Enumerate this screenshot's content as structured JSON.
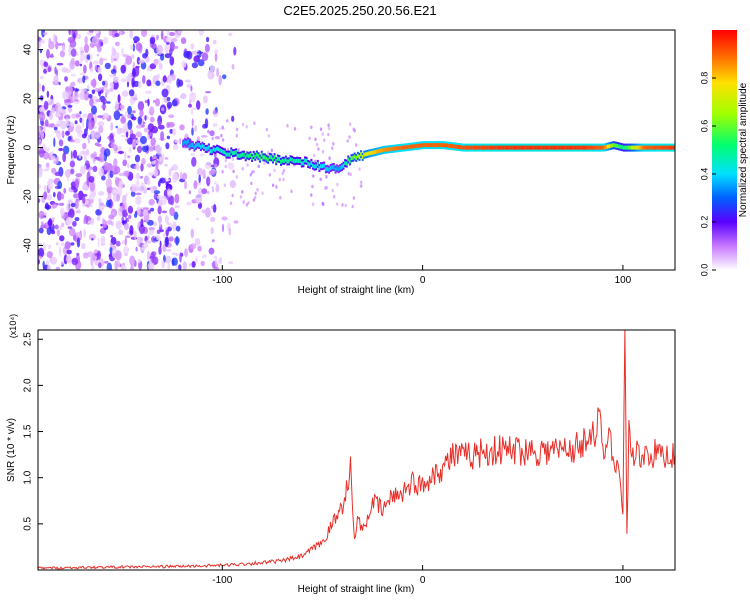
{
  "figure_title": "C2E5.2025.250.20.56.E21",
  "colors": {
    "snr_line": "#e8302a",
    "axis": "#000000",
    "background": "#ffffff"
  },
  "chart_data": [
    {
      "type": "heatmap",
      "title": "",
      "xlabel": "Height of straight line (km)",
      "ylabel": "Frequency (Hz)",
      "xlim": [
        -192,
        126
      ],
      "ylim": [
        -50,
        48
      ],
      "x_ticks": [
        -100,
        0,
        100
      ],
      "x_tick_labels": [
        "-100",
        "0",
        "100"
      ],
      "y_ticks": [
        -40,
        -20,
        0,
        20,
        40
      ],
      "y_tick_labels": [
        "-40",
        "-20",
        "0",
        "20",
        "40"
      ],
      "grid": false,
      "colorbar": {
        "label": "Normalized spectral amplitude",
        "range": [
          0,
          1
        ],
        "ticks": [
          0.0,
          0.2,
          0.4,
          0.6,
          0.8
        ],
        "tick_labels": [
          "0.0",
          "0.2",
          "0.4",
          "0.6",
          "0.8"
        ],
        "colormap": "rainbow"
      },
      "ridge": {
        "x": [
          -120,
          -110,
          -100,
          -90,
          -80,
          -70,
          -60,
          -50,
          -42,
          -35,
          -30,
          -25,
          -20,
          -10,
          0,
          10,
          20,
          40,
          60,
          80,
          90,
          95,
          100,
          110,
          126
        ],
        "freq": [
          2,
          0,
          -2,
          -3,
          -4,
          -5,
          -6,
          -8,
          -9,
          -4,
          -3,
          -2,
          -1,
          0,
          1,
          1,
          0,
          0,
          0,
          0,
          0,
          1,
          0,
          0,
          0
        ],
        "amplitude": [
          0.35,
          0.4,
          0.45,
          0.5,
          0.55,
          0.5,
          0.45,
          0.4,
          0.35,
          0.6,
          0.7,
          0.8,
          0.85,
          0.9,
          0.9,
          0.9,
          0.92,
          0.95,
          0.95,
          0.95,
          0.9,
          0.6,
          0.5,
          0.9,
          0.95
        ]
      },
      "noise_region_x": [
        -192,
        -105
      ]
    },
    {
      "type": "line",
      "title": "",
      "xlabel": "Height of straight line (km)",
      "ylabel": "SNR (10 * v/v)",
      "y_multiplier_label": "(x10⁴)",
      "xlim": [
        -192,
        126
      ],
      "ylim": [
        0,
        2.6
      ],
      "x_ticks": [
        -100,
        0,
        100
      ],
      "x_tick_labels": [
        "-100",
        "0",
        "100"
      ],
      "y_ticks": [
        0.5,
        1.0,
        1.5,
        2.0,
        2.5
      ],
      "y_tick_labels": [
        "0.5",
        "1.0",
        "1.5",
        "2.0",
        "2.5"
      ],
      "grid": false,
      "series": [
        {
          "x": [
            -192,
            -160,
            -120,
            -100,
            -80,
            -70,
            -60,
            -50,
            -45,
            -40,
            -36,
            -34,
            -32,
            -30,
            -27,
            -25,
            -20,
            -15,
            -10,
            -5,
            0,
            5,
            10,
            15,
            20,
            30,
            40,
            50,
            60,
            70,
            75,
            80,
            83,
            86,
            88,
            90,
            92,
            95,
            98,
            100,
            101,
            102,
            103,
            105,
            110,
            126
          ],
          "y": [
            0.02,
            0.03,
            0.04,
            0.05,
            0.08,
            0.1,
            0.15,
            0.3,
            0.5,
            0.7,
            1.1,
            0.3,
            0.6,
            0.4,
            0.6,
            0.75,
            0.65,
            0.8,
            0.85,
            0.95,
            0.9,
            1.05,
            1.1,
            1.25,
            1.22,
            1.28,
            1.3,
            1.3,
            1.29,
            1.3,
            1.32,
            1.35,
            1.55,
            1.4,
            1.75,
            1.2,
            1.45,
            1.3,
            1.1,
            0.6,
            2.6,
            0.4,
            1.5,
            1.25,
            1.26,
            1.25
          ]
        }
      ]
    }
  ]
}
